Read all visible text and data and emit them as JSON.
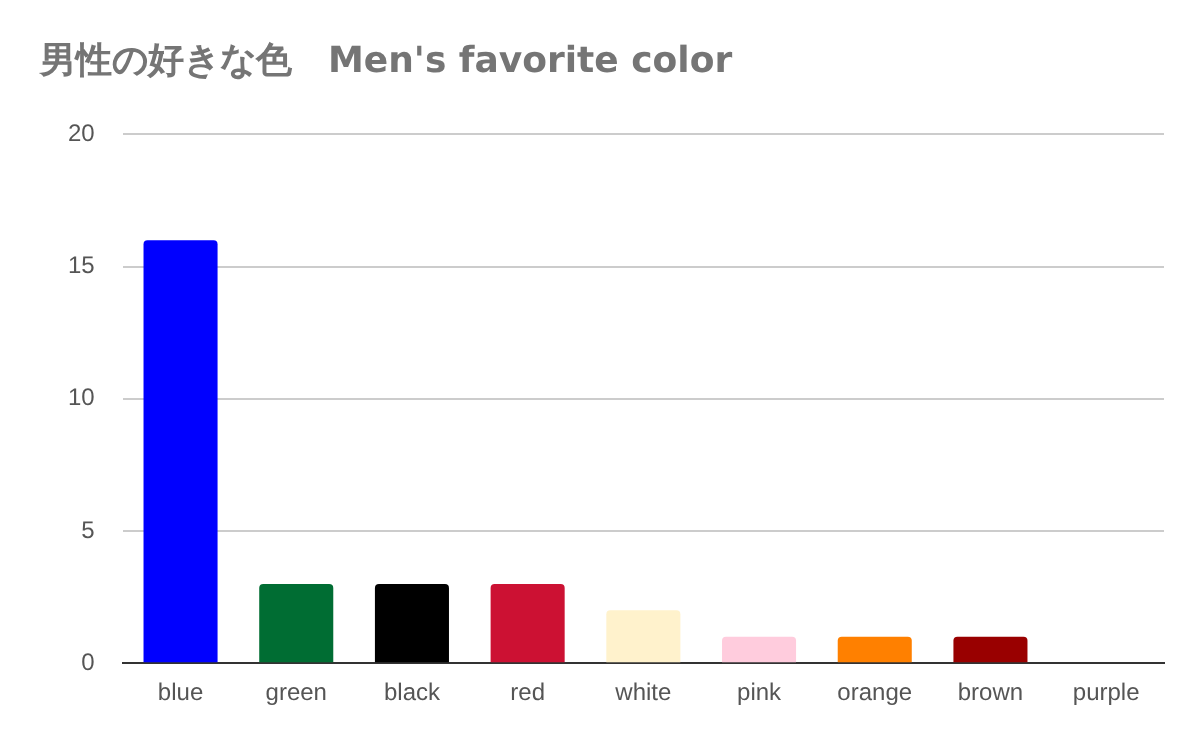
{
  "chart_data": {
    "type": "bar",
    "title": "男性の好きな色　Men's favorite color",
    "categories": [
      "blue",
      "green",
      "black",
      "red",
      "white",
      "pink",
      "orange",
      "brown",
      "purple"
    ],
    "values": [
      16,
      3,
      3,
      3,
      2,
      1,
      1,
      1,
      0
    ],
    "colors": [
      "#0000ff",
      "#006d33",
      "#000000",
      "#cc1133",
      "#fff2cc",
      "#ffccdd",
      "#ff8000",
      "#990000",
      "#9900ff"
    ],
    "ylim": [
      0,
      20
    ],
    "yticks": [
      0,
      5,
      10,
      15,
      20
    ],
    "grid": "y",
    "legend": false
  }
}
